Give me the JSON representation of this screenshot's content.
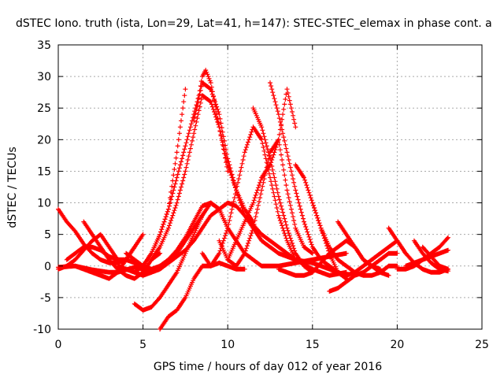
{
  "chart_data": {
    "type": "scatter",
    "title": "dSTEC Iono. truth (ista, Lon=29, Lat=41, h=147): STEC-STEC_elemax in phase cont. a",
    "xlabel": "GPS time / hours of day 012 of year 2016",
    "ylabel": "dSTEC  / TECUs",
    "xlim": [
      0,
      25
    ],
    "ylim": [
      -10,
      35
    ],
    "xticks": [
      0,
      5,
      10,
      15,
      20,
      25
    ],
    "yticks": [
      -10,
      -5,
      0,
      5,
      10,
      15,
      20,
      25,
      30,
      35
    ],
    "grid": true,
    "marker": "+",
    "color": "#ff0000",
    "series": [
      {
        "x": [
          0.0,
          0.5,
          1.0,
          1.5,
          2.0,
          2.5,
          3.0,
          3.5,
          4.0,
          4.5
        ],
        "y": [
          9,
          7,
          5.5,
          3.5,
          2,
          1,
          0.5,
          0.5,
          1,
          3
        ]
      },
      {
        "x": [
          0.0,
          0.5,
          1.0,
          1.5,
          2.0,
          2.5,
          3.0,
          3.5
        ],
        "y": [
          -0.5,
          0,
          1,
          2.5,
          4,
          5,
          3,
          1
        ]
      },
      {
        "x": [
          0.0,
          0.5,
          1.0,
          1.5,
          2.0,
          2.5,
          3.0,
          3.5,
          4.0,
          4.5,
          5.0,
          5.5,
          6.0,
          6.5,
          7.0,
          7.5,
          8.0,
          8.5,
          9.0,
          9.5,
          10.0,
          10.5,
          11.0,
          12.0,
          13.0,
          14.0,
          15.0,
          16.0,
          17.0
        ],
        "y": [
          -0.2,
          -0.1,
          0,
          -0.3,
          -0.6,
          -0.8,
          -1,
          -1,
          -0.6,
          -0.2,
          -0.5,
          -1,
          -0.5,
          0.5,
          1.5,
          2.5,
          4,
          6,
          8,
          9,
          10,
          9.5,
          8,
          5,
          3,
          1,
          -0.5,
          -1.5,
          -1
        ]
      },
      {
        "x": [
          0.5,
          1.0,
          1.5,
          2.0,
          2.5,
          3.0,
          3.5,
          4.0,
          4.5,
          5.0,
          5.5,
          6.0,
          6.5,
          7.0,
          7.5,
          8.0,
          8.5,
          9.0,
          9.5,
          10.0
        ],
        "y": [
          1,
          2,
          3,
          3,
          2.5,
          1.5,
          1,
          1,
          0.5,
          0,
          -0.5,
          0,
          1,
          2.5,
          4.5,
          7,
          9.5,
          10,
          9,
          6
        ]
      },
      {
        "x": [
          1.5,
          2.0,
          2.5,
          3.0,
          3.5,
          4.0,
          4.5,
          5.0,
          5.5,
          6.0
        ],
        "y": [
          7,
          5,
          3,
          1,
          -0.5,
          -1.5,
          -2,
          -1,
          1,
          2
        ]
      },
      {
        "x": [
          1.0,
          1.5,
          2.0,
          2.5,
          3.0,
          3.5,
          4.0,
          4.5,
          5.0
        ],
        "y": [
          0,
          -0.5,
          -1,
          -1.5,
          -2,
          -1,
          1,
          3,
          5
        ]
      },
      {
        "x": [
          3.5,
          4.0,
          4.5,
          5.0,
          5.5,
          6.0,
          6.5,
          7.0,
          7.5,
          8.0,
          8.5,
          9.0,
          9.5,
          10.0,
          11.0,
          12.0,
          13.0,
          14.0,
          15.0,
          16.0,
          17.0
        ],
        "y": [
          0,
          -0.5,
          -1,
          -1.5,
          -1,
          0,
          1,
          2,
          4,
          6,
          8,
          10,
          9,
          6,
          2,
          0,
          0,
          0.5,
          1,
          1.5,
          2
        ]
      },
      {
        "x": [
          4.5,
          5.0,
          5.5,
          6.0,
          6.5,
          7.0,
          7.5,
          8.0,
          8.3,
          8.5,
          8.7,
          9.0,
          9.5,
          10.0
        ],
        "y": [
          -1,
          0,
          2,
          5,
          9,
          14,
          19,
          24,
          27,
          30,
          31,
          29,
          22,
          15
        ]
      },
      {
        "x": [
          4.0,
          4.5,
          5.0,
          5.3
        ],
        "y": [
          2,
          1,
          0,
          -0.5
        ]
      },
      {
        "x": [
          5.0,
          5.5,
          6.0,
          6.5,
          7.0,
          7.5
        ],
        "y": [
          0,
          2,
          5,
          9,
          18,
          28
        ]
      },
      {
        "x": [
          5.5,
          6.0,
          6.5,
          7.0,
          7.5,
          8.0,
          8.5,
          9.0,
          9.5,
          10.0,
          10.5,
          11.0,
          12.0,
          13.0,
          14.0,
          15.0
        ],
        "y": [
          1,
          3,
          6,
          10,
          15,
          21,
          27,
          26,
          22,
          16,
          12,
          8,
          4,
          2,
          1,
          0.5
        ]
      },
      {
        "x": [
          4.5,
          5.0,
          5.5,
          6.0,
          6.5,
          7.0,
          7.5,
          8.0,
          8.5
        ],
        "y": [
          -6,
          -7,
          -6.5,
          -5,
          -3,
          -1,
          2,
          5,
          8
        ]
      },
      {
        "x": [
          6.0,
          6.5,
          7.0,
          7.5,
          8.0,
          8.5,
          9.0,
          9.5,
          10.0,
          10.5,
          11.0
        ],
        "y": [
          -10,
          -8,
          -7,
          -5,
          -2,
          0,
          0,
          0.5,
          0,
          -0.5,
          -0.5
        ]
      },
      {
        "x": [
          8.0,
          8.5,
          9.0,
          9.5,
          10.0,
          10.5,
          11.0,
          11.5
        ],
        "y": [
          23,
          29,
          28,
          24,
          17,
          12,
          9,
          7
        ]
      },
      {
        "x": [
          9.5,
          10.0,
          10.5,
          11.0,
          11.5,
          12.0,
          12.5,
          13.0,
          13.5,
          14.0,
          14.5,
          15.0
        ],
        "y": [
          4,
          1,
          0,
          2,
          6,
          12,
          18,
          20,
          12,
          6,
          3,
          2
        ]
      },
      {
        "x": [
          8.5,
          9.0,
          9.5,
          10.0,
          10.5,
          11.0,
          11.5,
          12.0,
          12.5,
          13.0,
          13.5,
          14.0
        ],
        "y": [
          2,
          0,
          2,
          6,
          12,
          18,
          22,
          20,
          14,
          8,
          4,
          1
        ]
      },
      {
        "x": [
          10.0,
          10.5,
          11.0,
          11.5,
          12.0,
          12.5,
          13.0,
          13.5,
          14.0
        ],
        "y": [
          1,
          4,
          7,
          10,
          14,
          16,
          20,
          28,
          22
        ]
      },
      {
        "x": [
          11.5,
          12.0,
          12.5,
          13.0,
          13.5,
          14.0,
          14.5,
          15.0
        ],
        "y": [
          25,
          22,
          17,
          11,
          6,
          2,
          0,
          -1
        ]
      },
      {
        "x": [
          12.5,
          13.0,
          13.5,
          14.0,
          14.5,
          15.0,
          15.5,
          16.0,
          16.5,
          17.0
        ],
        "y": [
          29,
          24,
          18,
          12,
          7,
          3,
          1,
          0,
          -1,
          -2
        ]
      },
      {
        "x": [
          14.0,
          14.5,
          15.0,
          15.5,
          16.0,
          16.5,
          17.0
        ],
        "y": [
          16,
          14,
          10,
          6,
          2,
          -1,
          -2
        ]
      },
      {
        "x": [
          13.0,
          13.5,
          14.0,
          14.5,
          15.0,
          15.5,
          16.0,
          16.5,
          17.0,
          17.5,
          18.0,
          18.5,
          19.0
        ],
        "y": [
          -0.5,
          -1,
          -1.5,
          -1.5,
          -1,
          0.5,
          2,
          3,
          4,
          3,
          1,
          0,
          -0.5
        ]
      },
      {
        "x": [
          15.0,
          15.5,
          16.0,
          16.5,
          17.0,
          17.5,
          18.0,
          18.5,
          19.0,
          19.5,
          20.0
        ],
        "y": [
          10,
          6,
          3,
          1,
          0,
          -1,
          -1.5,
          -1.5,
          -1,
          0,
          0
        ]
      },
      {
        "x": [
          16.5,
          17.0,
          17.5,
          18.0,
          18.5,
          19.0,
          19.5
        ],
        "y": [
          7,
          5,
          3,
          1,
          0,
          -1,
          -1.5
        ]
      },
      {
        "x": [
          15.0,
          15.5,
          16.0,
          16.5,
          17.0,
          17.5,
          18.0,
          18.5,
          19.0,
          19.5,
          20.0,
          20.5
        ],
        "y": [
          0.5,
          0,
          -0.5,
          -1,
          -1.5,
          -1,
          0,
          1,
          2,
          3,
          4,
          2
        ]
      },
      {
        "x": [
          16.0,
          16.5,
          17.0,
          17.5,
          18.0,
          18.5,
          19.0,
          19.5,
          20.0
        ],
        "y": [
          -4,
          -3.5,
          -2.5,
          -1.5,
          -1,
          0,
          1,
          2,
          2
        ]
      },
      {
        "x": [
          19.5,
          20.0,
          20.5,
          21.0,
          21.5,
          22.0,
          22.5,
          23.0
        ],
        "y": [
          6,
          4,
          2,
          0.5,
          -0.5,
          -1,
          -1,
          -0.5
        ]
      },
      {
        "x": [
          20.0,
          20.5,
          21.0,
          21.5,
          22.0,
          22.5,
          23.0
        ],
        "y": [
          -0.5,
          -0.5,
          0,
          1,
          2,
          3,
          4.5
        ]
      },
      {
        "x": [
          21.0,
          21.5,
          22.0,
          22.5,
          23.0
        ],
        "y": [
          4,
          2,
          0.5,
          -0.5,
          -0.8
        ]
      },
      {
        "x": [
          21.5,
          22.0,
          22.5,
          23.0
        ],
        "y": [
          3,
          1.5,
          0,
          -0.5
        ]
      },
      {
        "x": [
          20.5,
          21.0,
          21.5,
          22.0,
          22.5,
          23.0
        ],
        "y": [
          0,
          0.5,
          1,
          1.5,
          2,
          2.5
        ]
      }
    ]
  }
}
